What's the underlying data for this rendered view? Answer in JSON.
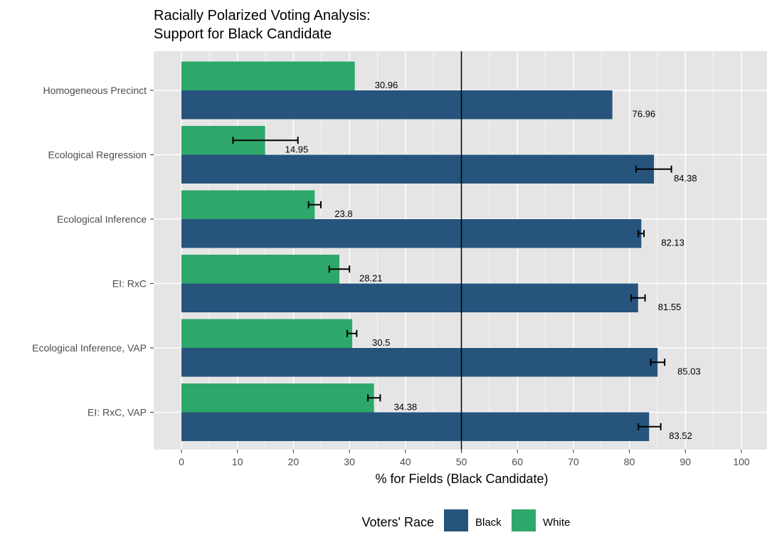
{
  "chart_data": {
    "type": "bar",
    "orientation": "horizontal",
    "title": "Racially Polarized Voting Analysis:\nSupport for Black Candidate",
    "title_lines": [
      "Racially Polarized Voting Analysis:",
      "Support for Black Candidate"
    ],
    "xlabel": "% for Fields (Black Candidate)",
    "ylabel": "",
    "xlim": [
      0,
      100
    ],
    "x_ticks": [
      0,
      10,
      20,
      30,
      40,
      50,
      60,
      70,
      80,
      90,
      100
    ],
    "reference_line": 50,
    "grid": true,
    "legend_position": "bottom",
    "legend_title": "Voters' Race",
    "categories": [
      "Homogeneous Precinct",
      "Ecological Regression",
      "Ecological Inference",
      "EI: RxC",
      "Ecological Inference, VAP",
      "EI: RxC, VAP"
    ],
    "series": [
      {
        "name": "Black",
        "color": "#26547c",
        "values": [
          76.96,
          84.38,
          82.13,
          81.55,
          85.03,
          83.52
        ],
        "labels": [
          "76.96",
          "84.38",
          "82.13",
          "81.55",
          "85.03",
          "83.52"
        ],
        "error_low": [
          null,
          81.2,
          81.6,
          80.3,
          83.8,
          81.6
        ],
        "error_high": [
          null,
          87.5,
          82.6,
          82.8,
          86.3,
          85.6
        ]
      },
      {
        "name": "White",
        "color": "#2ea76b",
        "values": [
          30.96,
          14.95,
          23.8,
          28.21,
          30.5,
          34.38
        ],
        "labels": [
          "30.96",
          "14.95",
          "23.8",
          "28.21",
          "30.5",
          "34.38"
        ],
        "error_low": [
          null,
          9.2,
          22.7,
          26.4,
          29.6,
          33.3
        ],
        "error_high": [
          null,
          20.8,
          24.9,
          30.0,
          31.3,
          35.5
        ]
      }
    ]
  }
}
